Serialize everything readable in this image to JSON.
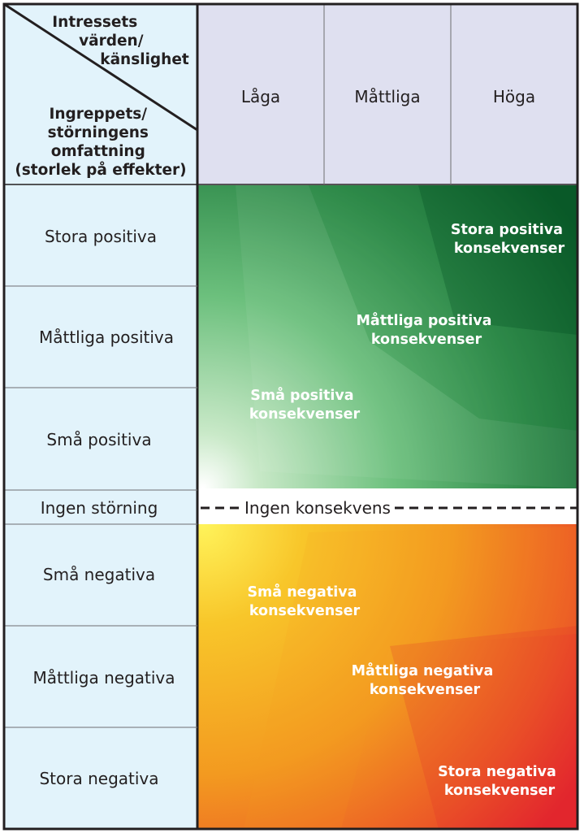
{
  "corner": {
    "values_lines": [
      "Intressets",
      "värden/",
      "känslighet"
    ],
    "impact_lines": [
      "Ingreppets/",
      "störningens",
      "omfattning",
      "(storlek på effekter)"
    ]
  },
  "columns": [
    "Låga",
    "Måttliga",
    "Höga"
  ],
  "rows": [
    "Stora positiva",
    "Måttliga positiva",
    "Små positiva",
    "Ingen störning",
    "Små negativa",
    "Måttliga negativa",
    "Stora negativa"
  ],
  "zones": {
    "positive": [
      {
        "lines": [
          "Stora positiva",
          "konsekvenser"
        ]
      },
      {
        "lines": [
          "Måttliga positiva",
          "konsekvenser"
        ]
      },
      {
        "lines": [
          "Små positiva",
          "konsekvenser"
        ]
      }
    ],
    "neutral": "Ingen konsekvens",
    "negative": [
      {
        "lines": [
          "Små negativa",
          "konsekvenser"
        ]
      },
      {
        "lines": [
          "Måttliga negativa",
          "konsekvenser"
        ]
      },
      {
        "lines": [
          "Stora negativa",
          "konsekvenser"
        ]
      }
    ]
  },
  "colors": {
    "header_fill": "#dfe0f0",
    "row_fill": "#e2f3fb",
    "border": "#231f20",
    "positive_light": "#ffffff",
    "positive_mid": "#6cc07d",
    "positive_dark": "#0a5a28",
    "negative_yellow": "#fff04a",
    "negative_orange": "#f5a21c",
    "negative_red": "#e42a2f"
  }
}
